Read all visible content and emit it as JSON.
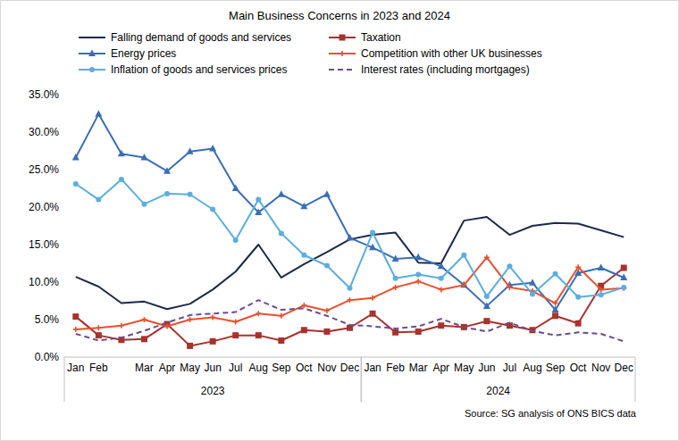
{
  "chart_data": {
    "type": "line",
    "title": "Main Business Concerns in 2023 and 2024",
    "source": "Source: SG analysis of ONS BICS data",
    "categories": [
      "Jan",
      "Feb",
      null,
      "Mar",
      "Apr",
      "May",
      "Jun",
      "Jul",
      "Aug",
      "Sep",
      "Oct",
      "Nov",
      "Dec",
      "Jan",
      "Feb",
      "Mar",
      "Apr",
      "May",
      "Jun",
      "Jul",
      "Aug",
      "Sep",
      "Oct",
      "Nov",
      "Dec"
    ],
    "x_groups": [
      {
        "label": "2023",
        "from": 0,
        "to": 12
      },
      {
        "label": "2024",
        "from": 13,
        "to": 24
      }
    ],
    "ylim": [
      0,
      35
    ],
    "yticks": [
      {
        "value": 0,
        "label": "0.0%"
      },
      {
        "value": 5,
        "label": "5.0%"
      },
      {
        "value": 10,
        "label": "10.0%"
      },
      {
        "value": 15,
        "label": "15.0%"
      },
      {
        "value": 20,
        "label": "20.0%"
      },
      {
        "value": 25,
        "label": "25.0%"
      },
      {
        "value": 30,
        "label": "30.0%"
      },
      {
        "value": 35,
        "label": "35.0%"
      }
    ],
    "grid": false,
    "legend": "top",
    "series": [
      {
        "name": "Falling demand of goods and services",
        "color": "#1b2a4a",
        "marker": "none",
        "line_style": "solid",
        "values": [
          10.7,
          9.4,
          7.2,
          7.4,
          6.4,
          7.1,
          9.0,
          11.4,
          15.0,
          10.6,
          12.4,
          14.0,
          15.7,
          16.3,
          16.6,
          12.6,
          12.5,
          18.2,
          18.7,
          16.3,
          17.5,
          17.9,
          17.8,
          16.9,
          16.0
        ]
      },
      {
        "name": "Taxation",
        "color": "#a8322d",
        "marker": "square",
        "line_style": "solid",
        "values": [
          5.4,
          2.9,
          2.3,
          2.4,
          4.4,
          1.5,
          2.1,
          2.9,
          2.9,
          2.2,
          3.6,
          3.4,
          3.9,
          5.8,
          3.3,
          3.4,
          4.2,
          4.0,
          4.8,
          4.2,
          3.6,
          5.5,
          4.5,
          9.5,
          11.9
        ]
      },
      {
        "name": "Energy prices",
        "color": "#3a6eb5",
        "marker": "triangle",
        "line_style": "solid",
        "values": [
          26.6,
          32.4,
          27.1,
          26.6,
          24.8,
          27.4,
          27.8,
          22.5,
          19.3,
          21.7,
          20.1,
          21.7,
          15.9,
          14.6,
          13.1,
          13.3,
          12.1,
          9.6,
          6.8,
          9.6,
          9.9,
          6.3,
          11.2,
          11.9,
          10.6
        ]
      },
      {
        "name": "Competition with other UK businesses",
        "color": "#e8502e",
        "marker": "plus",
        "line_style": "solid",
        "values": [
          3.7,
          3.9,
          4.2,
          5.0,
          4.1,
          5.0,
          5.3,
          4.7,
          5.8,
          5.5,
          6.9,
          6.2,
          7.6,
          7.9,
          9.3,
          10.1,
          9.0,
          9.6,
          13.3,
          9.3,
          8.8,
          7.2,
          12.0,
          9.0,
          9.2
        ]
      },
      {
        "name": "Inflation of goods and services prices",
        "color": "#5aaee0",
        "marker": "circle",
        "line_style": "solid",
        "values": [
          23.1,
          21.0,
          23.7,
          20.4,
          21.8,
          21.7,
          19.7,
          15.6,
          21.0,
          16.5,
          13.6,
          12.2,
          9.2,
          16.6,
          10.5,
          11.0,
          10.5,
          13.6,
          8.1,
          12.1,
          8.4,
          11.1,
          8.0,
          8.3,
          9.3
        ]
      },
      {
        "name": "Interest rates (including mortgages)",
        "color": "#6a4c93",
        "marker": "none",
        "line_style": "dashed",
        "values": [
          3.1,
          2.2,
          2.6,
          3.5,
          4.6,
          5.6,
          5.8,
          6.0,
          7.6,
          6.3,
          6.5,
          5.5,
          4.3,
          4.1,
          3.8,
          4.1,
          5.1,
          4.0,
          3.4,
          4.6,
          3.5,
          2.9,
          3.3,
          3.1,
          2.1
        ]
      }
    ]
  }
}
